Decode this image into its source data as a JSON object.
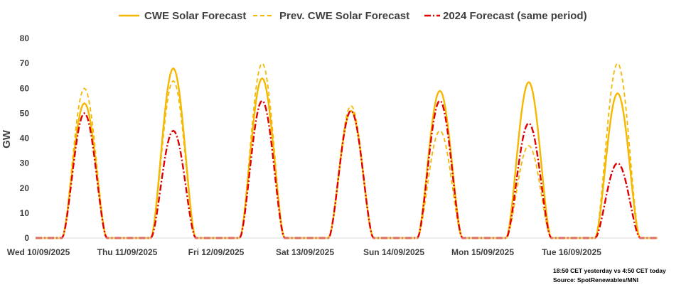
{
  "chart_data": {
    "type": "line",
    "title": "",
    "xlabel": "",
    "ylabel": "GW",
    "ylim": [
      0,
      80
    ],
    "yticks": [
      0,
      10,
      20,
      30,
      40,
      50,
      60,
      70,
      80
    ],
    "grid": false,
    "legend_position": "top",
    "categories": [
      "Wed 10/09/2025",
      "Thu 11/09/2025",
      "Fri 12/09/2025",
      "Sat 13/09/2025",
      "Sun 14/09/2025",
      "Mon 15/09/2025",
      "Tue 16/09/2025"
    ],
    "series": [
      {
        "name": "CWE Solar Forecast",
        "style": "solid",
        "color": "#F5B800",
        "daily_peaks": [
          54,
          68,
          64,
          51,
          59,
          62.5,
          58
        ]
      },
      {
        "name": "Prev. CWE Solar Forecast",
        "style": "dashed",
        "color": "#F5B800",
        "daily_peaks": [
          60,
          63,
          70,
          53,
          43,
          37,
          70
        ]
      },
      {
        "name": "2024 Forecast (same period)",
        "style": "dashdot",
        "color": "#E00000",
        "daily_peaks": [
          50,
          43,
          55,
          51,
          55,
          46,
          30
        ]
      }
    ],
    "annotations": {
      "line1": "18:50 CET yesterday vs  4:50 CET today",
      "line2": "Source: SpotRenewables/MNI"
    }
  }
}
